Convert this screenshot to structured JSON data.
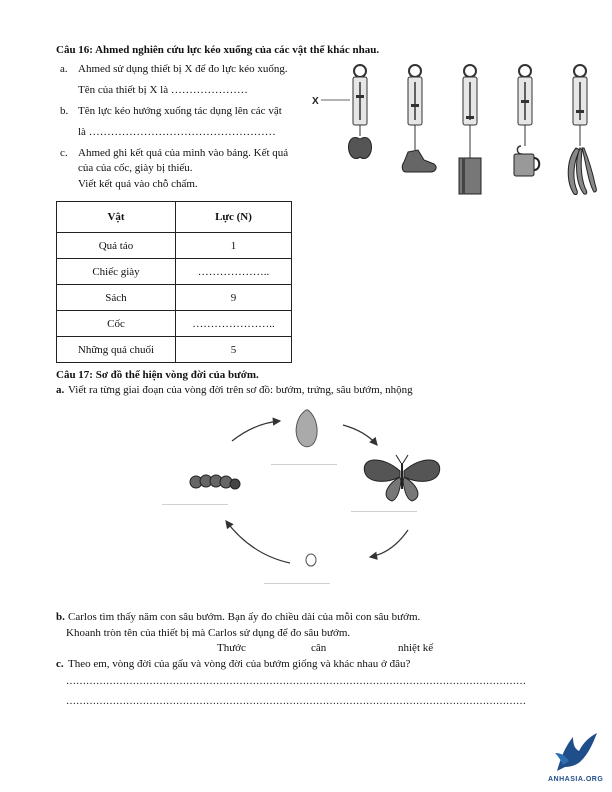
{
  "q16": {
    "title": "Câu 16: Ahmed nghiên cứu lực kéo xuống của các vật thể khác nhau.",
    "a_marker": "a.",
    "a_line1": "Ahmed sử dụng thiết bị X để đo lực kéo xuống.",
    "a_line2": "Tên của thiết bị X là …………………",
    "b_marker": "b.",
    "b_line1": "Tên lực kéo hướng xuống tác dụng lên các vật",
    "b_line2": "là ……………………………………………",
    "c_marker": "c.",
    "c_line1": "Ahmed ghi kết quả của mình vào bảng. Kết quả",
    "c_line2": "của của cốc, giày bị thiếu.",
    "c_line3": "Viết kết quả vào chỗ chấm.",
    "device_label": "X",
    "table": {
      "headers": [
        "Vật",
        "Lực (N)"
      ],
      "rows": [
        [
          "Quả táo",
          "1"
        ],
        [
          "Chiếc giày",
          "……………….."
        ],
        [
          "Sách",
          "9"
        ],
        [
          "Cốc",
          "………………….."
        ],
        [
          "Những quả chuối",
          "5"
        ]
      ]
    }
  },
  "q17": {
    "title": "Câu 17: Sơ đồ thể hiện vòng đời của bướm.",
    "a_marker": "a.",
    "a_text": "Viết ra từng giai đoạn của vòng đời trên sơ đồ: bướm, trứng, sâu bướm, nhộng",
    "blank": "……………………………",
    "b_marker": "b.",
    "b_line1": "Carlos tìm thấy năm con sâu bướm. Bạn ấy đo chiều dài của mỗi con sâu bướm.",
    "b_line2": "Khoanh tròn tên của thiết bị mà Carlos sử dụng để đo sâu bướm.",
    "options": [
      "Thước",
      "cân",
      "nhiệt kế"
    ],
    "c_marker": "c.",
    "c_text": "Theo em, vòng đời của gấu và vòng đời của bướm giống và khác nhau ở đâu?",
    "answer_line": "…………………………………………………………………………………………………………………………"
  },
  "logo": {
    "text": "ANHASIA.ORG",
    "color": "#1f4e8a"
  }
}
